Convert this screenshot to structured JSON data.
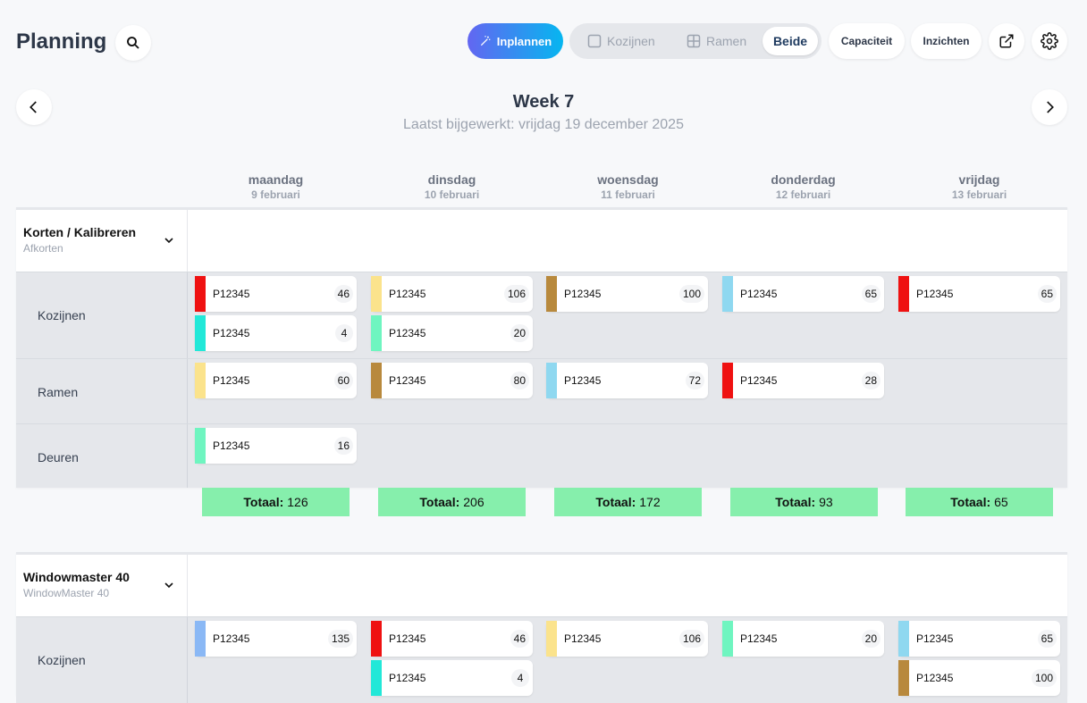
{
  "header": {
    "title": "Planning",
    "plan_label": "Inplannen",
    "view_toggle": {
      "kozijnen": "Kozijnen",
      "ramen": "Ramen",
      "beide": "Beide"
    },
    "capacity_label": "Capaciteit",
    "insights_label": "Inzichten"
  },
  "week": {
    "title": "Week 7",
    "updated": "Laatst bijgewerkt: vrijdag 19 december 2025"
  },
  "days": [
    {
      "name": "maandag",
      "date": "9 februari"
    },
    {
      "name": "dinsdag",
      "date": "10 februari"
    },
    {
      "name": "woensdag",
      "date": "11 februari"
    },
    {
      "name": "donderdag",
      "date": "12 februari"
    },
    {
      "name": "vrijdag",
      "date": "13 februari"
    }
  ],
  "sections": [
    {
      "name": "Korten / Kalibreren",
      "sub": "Afkorten",
      "rows": [
        {
          "label": "Kozijnen",
          "cards": [
            {
              "day": 0,
              "slot": 0,
              "id": "P12345",
              "qty": "46",
              "color": "#ef1111"
            },
            {
              "day": 0,
              "slot": 1,
              "id": "P12345",
              "qty": "4",
              "color": "#22e8d8"
            },
            {
              "day": 1,
              "slot": 0,
              "id": "P12345",
              "qty": "106",
              "color": "#fbe38c"
            },
            {
              "day": 1,
              "slot": 1,
              "id": "P12345",
              "qty": "20",
              "color": "#6ff5c0"
            },
            {
              "day": 2,
              "slot": 0,
              "id": "P12345",
              "qty": "100",
              "color": "#b8893d"
            },
            {
              "day": 3,
              "slot": 0,
              "id": "P12345",
              "qty": "65",
              "color": "#8fd8f0"
            },
            {
              "day": 4,
              "slot": 0,
              "id": "P12345",
              "qty": "65",
              "color": "#ef1111"
            }
          ]
        },
        {
          "label": "Ramen",
          "cards": [
            {
              "day": 0,
              "slot": 0,
              "id": "P12345",
              "qty": "60",
              "color": "#fbe38c"
            },
            {
              "day": 1,
              "slot": 0,
              "id": "P12345",
              "qty": "80",
              "color": "#b8893d"
            },
            {
              "day": 2,
              "slot": 0,
              "id": "P12345",
              "qty": "72",
              "color": "#8fd8f0"
            },
            {
              "day": 3,
              "slot": 0,
              "id": "P12345",
              "qty": "28",
              "color": "#ef1111"
            }
          ]
        },
        {
          "label": "Deuren",
          "cards": [
            {
              "day": 0,
              "slot": 0,
              "id": "P12345",
              "qty": "16",
              "color": "#6ff5c0"
            }
          ]
        }
      ],
      "totals": [
        {
          "label": "Totaal:",
          "value": "126"
        },
        {
          "label": "Totaal:",
          "value": "206"
        },
        {
          "label": "Totaal:",
          "value": "172"
        },
        {
          "label": "Totaal:",
          "value": "93"
        },
        {
          "label": "Totaal:",
          "value": "65"
        }
      ]
    },
    {
      "name": "Windowmaster 40",
      "sub": "WindowMaster 40",
      "rows": [
        {
          "label": "Kozijnen",
          "cards": [
            {
              "day": 0,
              "slot": 0,
              "id": "P12345",
              "qty": "135",
              "color": "#8ab8f5"
            },
            {
              "day": 1,
              "slot": 0,
              "id": "P12345",
              "qty": "46",
              "color": "#ef1111"
            },
            {
              "day": 1,
              "slot": 1,
              "id": "P12345",
              "qty": "4",
              "color": "#22e8d8"
            },
            {
              "day": 2,
              "slot": 0,
              "id": "P12345",
              "qty": "106",
              "color": "#fbe38c"
            },
            {
              "day": 3,
              "slot": 0,
              "id": "P12345",
              "qty": "20",
              "color": "#6ff5c0"
            },
            {
              "day": 4,
              "slot": 0,
              "id": "P12345",
              "qty": "65",
              "color": "#8fd8f0"
            },
            {
              "day": 4,
              "slot": 1,
              "id": "P12345",
              "qty": "100",
              "color": "#b8893d"
            }
          ]
        }
      ]
    }
  ]
}
